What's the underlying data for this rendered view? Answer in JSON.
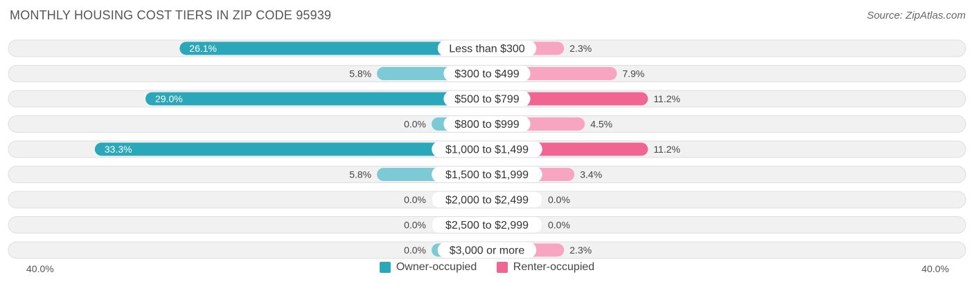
{
  "title": "MONTHLY HOUSING COST TIERS IN ZIP CODE 95939",
  "source": "Source: ZipAtlas.com",
  "colors": {
    "owner_dark": "#2aa7b8",
    "owner_light": "#7ccad6",
    "renter_dark": "#f06592",
    "renter_light": "#f7a5c0",
    "row_bg": "#f1f1f1",
    "row_border": "#dedede"
  },
  "legend": {
    "owner_label": "Owner-occupied",
    "renter_label": "Renter-occupied"
  },
  "axis": {
    "left_label": "40.0%",
    "right_label": "40.0%"
  },
  "chart_data": {
    "type": "bar",
    "orientation": "horizontal-diverging",
    "max_value": 40.0,
    "categories": [
      "Less than $300",
      "$300 to $499",
      "$500 to $799",
      "$800 to $999",
      "$1,000 to $1,499",
      "$1,500 to $1,999",
      "$2,000 to $2,499",
      "$2,500 to $2,999",
      "$3,000 or more"
    ],
    "series": [
      {
        "name": "Owner-occupied",
        "values": [
          26.1,
          5.8,
          29.0,
          0.0,
          33.3,
          5.8,
          0.0,
          0.0,
          0.0
        ],
        "labels": [
          "26.1%",
          "5.8%",
          "29.0%",
          "0.0%",
          "33.3%",
          "5.8%",
          "0.0%",
          "0.0%",
          "0.0%"
        ]
      },
      {
        "name": "Renter-occupied",
        "values": [
          2.3,
          7.9,
          11.2,
          4.5,
          11.2,
          3.4,
          0.0,
          0.0,
          2.3
        ],
        "labels": [
          "2.3%",
          "7.9%",
          "11.2%",
          "4.5%",
          "11.2%",
          "3.4%",
          "0.0%",
          "0.0%",
          "2.3%"
        ]
      }
    ]
  }
}
